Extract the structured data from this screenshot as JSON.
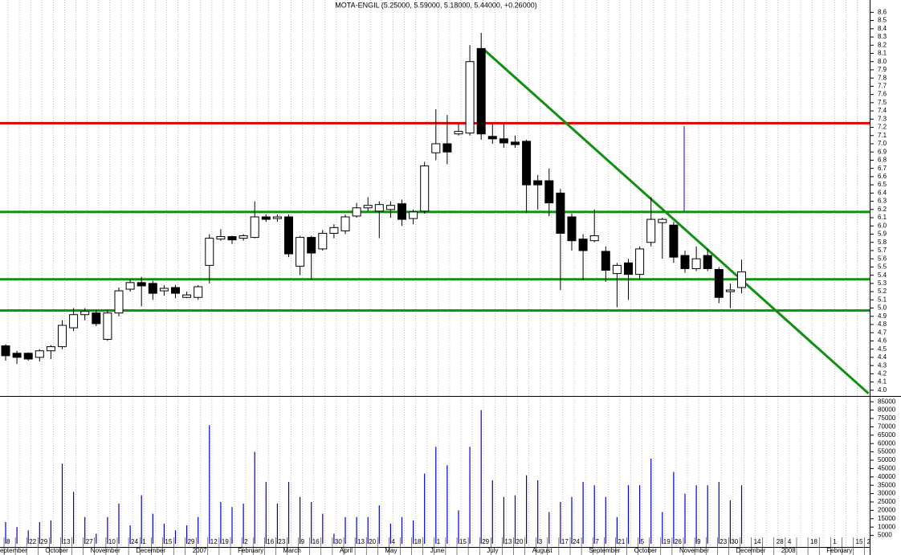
{
  "chart_data": {
    "type": "candlestick",
    "title": "MOTA-ENGIL (5.25000, 5.59000, 5.18000, 5.44000, +0.26000)",
    "categories": [
      "8",
      null,
      "22",
      "29",
      null,
      "13",
      null,
      "27",
      null,
      "10",
      null,
      "24",
      "1",
      null,
      "15",
      null,
      "29",
      null,
      "12",
      "19",
      null,
      "2",
      null,
      "16",
      "23",
      null,
      "9",
      "16",
      null,
      "30",
      null,
      "13",
      "20",
      null,
      "4",
      null,
      "18",
      null,
      "1",
      null,
      "15",
      null,
      "29",
      null,
      "13",
      "20",
      null,
      "3",
      null,
      "17",
      "24",
      null,
      "7",
      null,
      "21",
      null,
      "5",
      null,
      "19",
      "26",
      null,
      "9",
      null,
      "23",
      "30",
      null,
      "14",
      null,
      "28",
      "4",
      null,
      "18",
      null,
      "1",
      null,
      "15",
      "2"
    ],
    "month_labels": [
      "eptember",
      null,
      null,
      null,
      "October",
      null,
      null,
      null,
      "November",
      null,
      null,
      null,
      "December",
      null,
      null,
      null,
      null,
      "2007",
      null,
      null,
      null,
      "February",
      null,
      null,
      null,
      "March",
      null,
      null,
      null,
      null,
      "April",
      null,
      null,
      null,
      "May",
      null,
      null,
      null,
      "June",
      null,
      null,
      null,
      null,
      "July",
      null,
      null,
      null,
      "August",
      null,
      null,
      null,
      null,
      "September",
      null,
      null,
      null,
      "October",
      null,
      null,
      null,
      "November",
      null,
      null,
      null,
      null,
      "December",
      null,
      null,
      null,
      "2008",
      null,
      null,
      null,
      "February",
      null,
      null,
      null
    ],
    "open": [
      4.54,
      4.45,
      4.45,
      4.4,
      4.48,
      4.53,
      4.76,
      4.92,
      4.94,
      4.62,
      4.94,
      5.23,
      5.31,
      5.3,
      5.21,
      5.25,
      5.13,
      5.13,
      5.52,
      5.84,
      5.87,
      5.85,
      5.86,
      6.11,
      6.09,
      6.11,
      5.51,
      5.86,
      5.72,
      5.91,
      5.94,
      6.12,
      6.22,
      6.18,
      6.2,
      6.27,
      6.09,
      6.18,
      6.89,
      7.0,
      7.12,
      7.13,
      8.16,
      7.09,
      7.06,
      7.02,
      7.03,
      6.55,
      6.55,
      6.4,
      6.11,
      5.84,
      5.82,
      5.69,
      5.42,
      5.55,
      5.41,
      5.8,
      6.04,
      6.01,
      5.64,
      5.48,
      5.64,
      5.47,
      5.2,
      5.25,
      null,
      null,
      null,
      null,
      null,
      null,
      null,
      null,
      null,
      null,
      null
    ],
    "high": [
      4.56,
      4.48,
      4.46,
      4.5,
      4.55,
      4.85,
      5.0,
      5.0,
      4.98,
      4.98,
      5.25,
      5.35,
      5.38,
      5.33,
      5.28,
      5.28,
      5.2,
      5.28,
      5.9,
      5.96,
      5.88,
      5.9,
      6.3,
      6.14,
      6.14,
      6.14,
      5.88,
      5.88,
      5.95,
      6.02,
      6.14,
      6.28,
      6.35,
      6.3,
      6.3,
      6.32,
      6.2,
      6.78,
      7.42,
      7.35,
      7.25,
      8.2,
      8.35,
      7.25,
      7.25,
      7.1,
      7.05,
      6.62,
      6.7,
      6.45,
      6.15,
      5.9,
      6.2,
      5.75,
      5.55,
      5.6,
      5.75,
      6.35,
      6.1,
      6.05,
      5.7,
      5.75,
      5.72,
      5.5,
      5.3,
      5.59,
      null,
      null,
      null,
      null,
      null,
      null,
      null,
      null,
      null,
      null,
      null
    ],
    "low": [
      4.36,
      4.32,
      4.36,
      4.35,
      4.38,
      4.5,
      4.72,
      4.85,
      4.78,
      4.6,
      4.9,
      5.2,
      5.02,
      5.1,
      5.15,
      5.12,
      5.12,
      5.1,
      5.3,
      5.82,
      5.78,
      5.82,
      5.85,
      6.05,
      6.05,
      5.62,
      5.4,
      5.35,
      5.7,
      5.85,
      5.9,
      6.1,
      6.18,
      5.85,
      6.1,
      6.0,
      6.02,
      6.15,
      6.8,
      6.75,
      7.1,
      7.1,
      7.05,
      7.0,
      6.95,
      6.95,
      6.16,
      6.2,
      6.12,
      5.22,
      5.7,
      5.34,
      5.8,
      5.32,
      5.01,
      5.1,
      5.35,
      5.75,
      5.6,
      5.55,
      5.43,
      5.45,
      5.45,
      5.06,
      5.0,
      5.18,
      null,
      null,
      null,
      null,
      null,
      null,
      null,
      null,
      null,
      null,
      null
    ],
    "close": [
      4.42,
      4.4,
      4.38,
      4.48,
      4.53,
      4.79,
      4.92,
      4.96,
      4.81,
      4.94,
      5.21,
      5.31,
      5.27,
      5.18,
      5.24,
      5.18,
      5.16,
      5.26,
      5.85,
      5.87,
      5.83,
      5.88,
      6.11,
      6.08,
      6.11,
      5.66,
      5.86,
      5.67,
      5.91,
      5.98,
      6.11,
      6.22,
      6.25,
      6.26,
      6.25,
      6.08,
      6.17,
      6.73,
      7.0,
      6.9,
      7.15,
      8.0,
      7.12,
      7.06,
      7.01,
      6.99,
      6.5,
      6.5,
      6.28,
      5.91,
      5.82,
      5.7,
      5.88,
      5.46,
      5.52,
      5.41,
      5.72,
      6.08,
      6.08,
      5.62,
      5.48,
      5.6,
      5.48,
      5.13,
      5.22,
      5.44,
      null,
      null,
      null,
      null,
      null,
      null,
      null,
      null,
      null,
      null,
      null
    ],
    "volume": [
      13000,
      10000,
      8000,
      13000,
      14000,
      48000,
      31000,
      16000,
      6000,
      16000,
      24000,
      11000,
      29000,
      18000,
      12000,
      8000,
      11000,
      16000,
      71000,
      25000,
      22000,
      24000,
      55000,
      37000,
      24000,
      37000,
      28000,
      25000,
      18000,
      6000,
      16000,
      16000,
      16000,
      23000,
      12000,
      16000,
      14000,
      42000,
      58000,
      47000,
      20000,
      58000,
      80000,
      38000,
      28000,
      29000,
      41000,
      38000,
      19000,
      25000,
      28000,
      37000,
      35000,
      28000,
      16000,
      35000,
      35000,
      51000,
      19000,
      43000,
      30000,
      35000,
      35000,
      37000,
      26000,
      35000,
      null,
      null,
      null,
      null,
      null,
      null,
      null,
      null,
      null,
      null,
      null
    ],
    "up_color": "#ffffff",
    "down_color": "#000000",
    "volume_color": "#0000cc",
    "ylim": [
      3.93,
      8.75
    ],
    "yticks": [
      {
        "value": 4,
        "label": "4.0"
      },
      4.1,
      4.2,
      4.3,
      4.4,
      4.5,
      4.6,
      4.7,
      4.8,
      4.9,
      {
        "value": 5,
        "label": "5.0"
      },
      5.1,
      5.2,
      5.3,
      5.4,
      5.5,
      5.6,
      5.7,
      5.8,
      5.9,
      {
        "value": 6,
        "label": "6.0"
      },
      6.1,
      6.2,
      6.3,
      6.4,
      6.5,
      6.6,
      6.7,
      6.8,
      6.9,
      {
        "value": 7,
        "label": "7.0"
      },
      7.1,
      7.2,
      7.3,
      7.4,
      7.5,
      7.6,
      7.7,
      7.8,
      7.9,
      {
        "value": 8,
        "label": "8.0"
      },
      8.1,
      8.2,
      8.3,
      8.4,
      8.5,
      8.6
    ],
    "y2lim": [
      0,
      87500
    ],
    "y2ticks": [
      5000,
      10000,
      15000,
      20000,
      25000,
      30000,
      35000,
      40000,
      45000,
      50000,
      55000,
      60000,
      65000,
      70000,
      75000,
      80000,
      85000
    ],
    "hlines": [
      {
        "value": 7.25,
        "color": "#e00000"
      },
      {
        "value": 6.17,
        "color": "#109010"
      },
      {
        "value": 5.35,
        "color": "#109010"
      },
      {
        "value": 4.97,
        "color": "#109010"
      }
    ],
    "trendline": {
      "x": [
        42,
        76
      ],
      "y": [
        8.15,
        3.96
      ],
      "color": "#109010"
    },
    "grid": true
  }
}
